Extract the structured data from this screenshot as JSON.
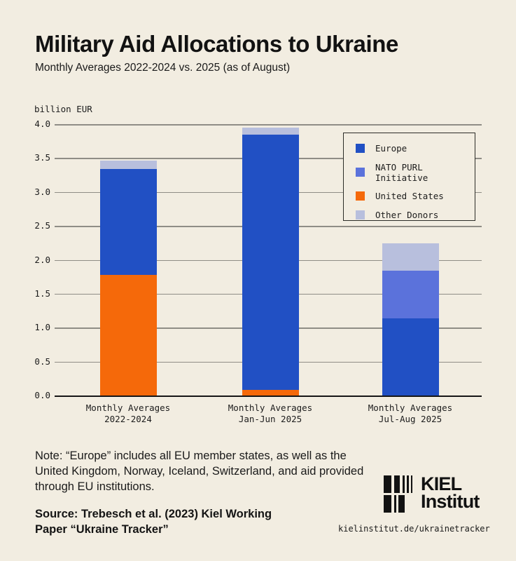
{
  "header": {
    "title": "Military Aid Allocations to Ukraine",
    "subtitle": "Monthly Averages 2022-2024 vs. 2025 (as of August)"
  },
  "chart_data": {
    "type": "bar",
    "stacked": true,
    "title": "Military Aid Allocations to Ukraine",
    "subtitle": "Monthly Averages 2022-2024 vs. 2025 (as of August)",
    "ylabel": "billion EUR",
    "xlabel": "",
    "ylim": [
      0,
      4.0
    ],
    "yticks": [
      0.0,
      0.5,
      1.0,
      1.5,
      2.0,
      2.5,
      3.0,
      3.5,
      4.0
    ],
    "grid": true,
    "legend_position": "top-right",
    "categories": [
      "Monthly Averages\n2022-2024",
      "Monthly Averages\nJan-Jun 2025",
      "Monthly Averages\nJul-Aug 2025"
    ],
    "series": [
      {
        "name": "United States",
        "color": "#f5690a",
        "values": [
          1.78,
          0.08,
          0
        ]
      },
      {
        "name": "Europe",
        "color": "#2150c4",
        "values": [
          1.56,
          3.77,
          1.14
        ]
      },
      {
        "name": "NATO PURL Initiative",
        "color": "#5b72db",
        "values": [
          0,
          0,
          0.7
        ]
      },
      {
        "name": "Other Donors",
        "color": "#b8bfdd",
        "values": [
          0.12,
          0.1,
          0.4
        ]
      }
    ],
    "totals": [
      3.46,
      3.95,
      2.24
    ],
    "legend": [
      {
        "label": "Europe",
        "color": "#2150c4"
      },
      {
        "label": "NATO PURL Initiative",
        "color": "#5b72db"
      },
      {
        "label": "United States",
        "color": "#f5690a"
      },
      {
        "label": "Other Donors",
        "color": "#b8bfdd"
      }
    ]
  },
  "footer": {
    "note": "Note: “Europe” includes all EU member states, as well as the\nUnited Kingdom, Norway, Iceland, Switzerland, and aid provided\nthrough EU institutions.",
    "source": "Source: Trebesch et al. (2023) Kiel Working\nPaper “Ukraine Tracker”",
    "logo_line1": "KIEL",
    "logo_line2": "Institut",
    "url": "kielinstitut.de/ukrainetracker"
  },
  "colors": {
    "background": "#f2ede1",
    "grid": "#8f8d86",
    "axis": "#161616",
    "text": "#141414"
  }
}
